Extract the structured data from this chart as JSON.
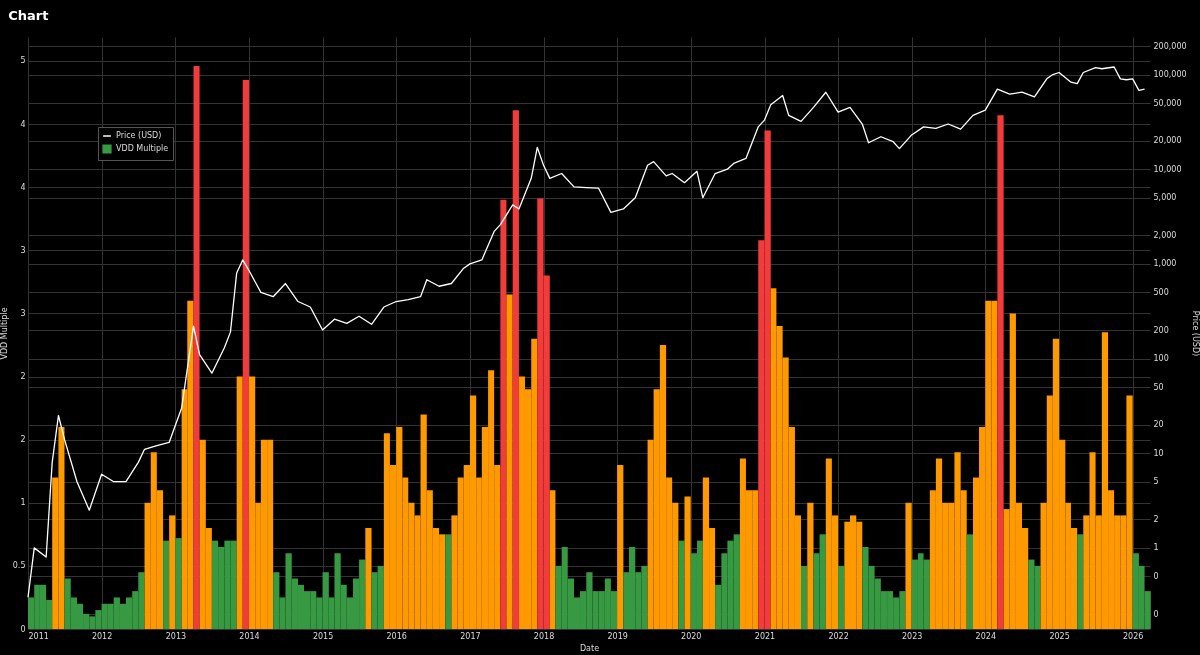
{
  "chart_data": {
    "type": "bar",
    "title": "Chart",
    "xlabel": "Date",
    "ylabel": "VDD Multiple",
    "y2label": "Price (USD)",
    "x": [
      "2011-01",
      "2011-02",
      "2011-03",
      "2011-04",
      "2011-05",
      "2011-06",
      "2011-07",
      "2011-08",
      "2011-09",
      "2011-10",
      "2011-11",
      "2011-12",
      "2012-01",
      "2012-02",
      "2012-03",
      "2012-04",
      "2012-05",
      "2012-06",
      "2012-07",
      "2012-08",
      "2012-09",
      "2012-10",
      "2012-11",
      "2012-12",
      "2013-01",
      "2013-02",
      "2013-03",
      "2013-04",
      "2013-05",
      "2013-06",
      "2013-07",
      "2013-08",
      "2013-09",
      "2013-10",
      "2013-11",
      "2013-12",
      "2014-01",
      "2014-02",
      "2014-03",
      "2014-04",
      "2014-05",
      "2014-06",
      "2014-07",
      "2014-08",
      "2014-09",
      "2014-10",
      "2014-11",
      "2014-12",
      "2015-01",
      "2015-02",
      "2015-03",
      "2015-04",
      "2015-05",
      "2015-06",
      "2015-07",
      "2015-08",
      "2015-09",
      "2015-10",
      "2015-11",
      "2015-12",
      "2016-01",
      "2016-02",
      "2016-03",
      "2016-04",
      "2016-05",
      "2016-06",
      "2016-07",
      "2016-08",
      "2016-09",
      "2016-10",
      "2016-11",
      "2016-12",
      "2017-01",
      "2017-02",
      "2017-03",
      "2017-04",
      "2017-05",
      "2017-06",
      "2017-07",
      "2017-08",
      "2017-09",
      "2017-10",
      "2017-11",
      "2017-12",
      "2018-01",
      "2018-02",
      "2018-03",
      "2018-04",
      "2018-05",
      "2018-06",
      "2018-07",
      "2018-08",
      "2018-09",
      "2018-10",
      "2018-11",
      "2018-12",
      "2019-01",
      "2019-02",
      "2019-03",
      "2019-04",
      "2019-05",
      "2019-06",
      "2019-07",
      "2019-08",
      "2019-09",
      "2019-10",
      "2019-11",
      "2019-12",
      "2020-01",
      "2020-02",
      "2020-03",
      "2020-04",
      "2020-05",
      "2020-06",
      "2020-07",
      "2020-08",
      "2020-09",
      "2020-10",
      "2020-11",
      "2020-12",
      "2021-01",
      "2021-02",
      "2021-03",
      "2021-04",
      "2021-05",
      "2021-06",
      "2021-07",
      "2021-08",
      "2021-09",
      "2021-10",
      "2021-11",
      "2021-12",
      "2022-01",
      "2022-02",
      "2022-03",
      "2022-04",
      "2022-05",
      "2022-06",
      "2022-07",
      "2022-08",
      "2022-09",
      "2022-10",
      "2022-11",
      "2022-12",
      "2023-01",
      "2023-02",
      "2023-03",
      "2023-04",
      "2023-05",
      "2023-06",
      "2023-07",
      "2023-08",
      "2023-09",
      "2023-10",
      "2023-11",
      "2023-12",
      "2024-01",
      "2024-02",
      "2024-03",
      "2024-04",
      "2024-05",
      "2024-06",
      "2024-07",
      "2024-08",
      "2024-09",
      "2024-10",
      "2024-11",
      "2024-12",
      "2025-01",
      "2025-02",
      "2025-03",
      "2025-04",
      "2025-05",
      "2025-06",
      "2025-07",
      "2025-08",
      "2025-09",
      "2025-10",
      "2025-11",
      "2025-12",
      "2026-01",
      "2026-02",
      "2026-03"
    ],
    "series": [
      {
        "name": "Price (USD)",
        "type": "line",
        "axis": "y2",
        "color": "#ffffff",
        "x": [
          "2011-01",
          "2011-02",
          "2011-04",
          "2011-05",
          "2011-06",
          "2011-07",
          "2011-09",
          "2011-11",
          "2012-01",
          "2012-03",
          "2012-05",
          "2012-07",
          "2012-08",
          "2012-10",
          "2012-12",
          "2013-02",
          "2013-04",
          "2013-05",
          "2013-07",
          "2013-09",
          "2013-10",
          "2013-11",
          "2013-12",
          "2014-01",
          "2014-03",
          "2014-05",
          "2014-07",
          "2014-09",
          "2014-11",
          "2015-01",
          "2015-03",
          "2015-05",
          "2015-07",
          "2015-09",
          "2015-11",
          "2016-01",
          "2016-03",
          "2016-05",
          "2016-06",
          "2016-08",
          "2016-10",
          "2016-12",
          "2017-01",
          "2017-03",
          "2017-05",
          "2017-06",
          "2017-08",
          "2017-09",
          "2017-11",
          "2017-12",
          "2018-01",
          "2018-02",
          "2018-04",
          "2018-06",
          "2018-08",
          "2018-10",
          "2018-12",
          "2019-02",
          "2019-04",
          "2019-06",
          "2019-07",
          "2019-09",
          "2019-10",
          "2019-12",
          "2020-02",
          "2020-03",
          "2020-05",
          "2020-07",
          "2020-08",
          "2020-10",
          "2020-12",
          "2021-01",
          "2021-02",
          "2021-04",
          "2021-05",
          "2021-07",
          "2021-09",
          "2021-11",
          "2022-01",
          "2022-03",
          "2022-05",
          "2022-06",
          "2022-08",
          "2022-10",
          "2022-11",
          "2023-01",
          "2023-03",
          "2023-05",
          "2023-07",
          "2023-09",
          "2023-11",
          "2024-01",
          "2024-03",
          "2024-05",
          "2024-07",
          "2024-09",
          "2024-11",
          "2024-12",
          "2025-01",
          "2025-03",
          "2025-04",
          "2025-05",
          "2025-07",
          "2025-08",
          "2025-10",
          "2025-11",
          "2025-12",
          "2026-01",
          "2026-02",
          "2026-03"
        ],
        "values": [
          0.3,
          1,
          0.8,
          8,
          25,
          14,
          5,
          2.5,
          6,
          5,
          5,
          8,
          11,
          12,
          13,
          30,
          220,
          110,
          70,
          130,
          190,
          800,
          1100,
          850,
          500,
          450,
          620,
          400,
          350,
          200,
          260,
          235,
          280,
          230,
          350,
          400,
          420,
          450,
          680,
          580,
          620,
          900,
          1000,
          1100,
          2200,
          2600,
          4200,
          3800,
          8000,
          17000,
          11000,
          8000,
          9000,
          6500,
          6400,
          6300,
          3500,
          3800,
          5000,
          11000,
          12000,
          8500,
          9000,
          7200,
          9500,
          5000,
          9000,
          10000,
          11500,
          13000,
          28000,
          33000,
          48000,
          60000,
          37000,
          32000,
          45000,
          65000,
          40000,
          45000,
          30000,
          19000,
          22000,
          19500,
          16500,
          23000,
          28000,
          27000,
          30000,
          26500,
          37000,
          42000,
          70000,
          62000,
          65000,
          58000,
          90000,
          100000,
          105000,
          83000,
          80000,
          105000,
          118000,
          115000,
          120000,
          90000,
          88000,
          90000,
          68000,
          70000
        ]
      },
      {
        "name": "VDD Multiple",
        "color": "#379a43",
        "values": [
          0.25,
          0.35,
          0.35,
          0.23,
          1.2,
          1.6,
          0.4,
          0.25,
          0.2,
          0.12,
          0.1,
          0.15,
          0.2,
          0.2,
          0.25,
          0.2,
          0.25,
          0.3,
          0.45,
          1.0,
          1.4,
          1.1,
          0.7,
          0.9,
          0.72,
          1.9,
          2.6,
          4.46,
          1.5,
          0.8,
          0.7,
          0.65,
          0.7,
          0.7,
          2.0,
          4.35,
          2.0,
          1.0,
          1.5,
          1.5,
          0.45,
          0.25,
          0.6,
          0.4,
          0.35,
          0.3,
          0.3,
          0.25,
          0.45,
          0.25,
          0.6,
          0.35,
          0.25,
          0.4,
          0.55,
          0.8,
          0.45,
          0.5,
          1.55,
          1.3,
          1.6,
          1.2,
          1.0,
          0.9,
          1.7,
          1.1,
          0.8,
          0.75,
          0.75,
          0.9,
          1.2,
          1.3,
          1.85,
          1.2,
          1.6,
          2.05,
          1.3,
          3.4,
          2.65,
          4.11,
          2.0,
          1.9,
          2.3,
          3.41,
          2.8,
          1.1,
          0.5,
          0.65,
          0.4,
          0.25,
          0.3,
          0.45,
          0.3,
          0.3,
          0.4,
          0.3,
          1.3,
          0.45,
          0.65,
          0.45,
          0.5,
          1.5,
          1.9,
          2.25,
          1.2,
          1.0,
          0.7,
          1.05,
          0.6,
          0.7,
          1.2,
          0.8,
          0.35,
          0.6,
          0.7,
          0.75,
          1.35,
          1.1,
          1.1,
          3.08,
          3.95,
          2.7,
          2.4,
          2.15,
          1.6,
          0.9,
          0.5,
          1.0,
          0.6,
          0.75,
          1.35,
          0.9,
          0.5,
          0.85,
          0.9,
          0.85,
          0.65,
          0.5,
          0.4,
          0.3,
          0.3,
          0.25,
          0.3,
          1.0,
          0.55,
          0.6,
          0.55,
          1.1,
          1.35,
          1.0,
          1.0,
          1.4,
          1.1,
          0.75,
          1.2,
          1.6,
          2.6,
          2.6,
          4.07,
          0.95,
          2.5,
          1.0,
          0.8,
          0.55,
          0.5,
          1.0,
          1.85,
          2.3,
          1.5,
          1.0,
          0.8,
          0.75,
          0.9,
          1.4,
          0.9,
          2.35,
          1.1,
          0.9,
          0.9,
          1.85,
          0.6,
          0.5,
          0.3
        ],
        "colors": [
          "#379a43",
          "#379a43",
          "#379a43",
          "#379a43",
          "#ff9900",
          "#ff9900",
          "#379a43",
          "#379a43",
          "#379a43",
          "#379a43",
          "#379a43",
          "#379a43",
          "#379a43",
          "#379a43",
          "#379a43",
          "#379a43",
          "#379a43",
          "#379a43",
          "#379a43",
          "#ff9900",
          "#ff9900",
          "#ff9900",
          "#379a43",
          "#ff9900",
          "#379a43",
          "#ff9900",
          "#ff9900",
          "#f23b3b",
          "#ff9900",
          "#ff9900",
          "#379a43",
          "#379a43",
          "#379a43",
          "#379a43",
          "#ff9900",
          "#f23b3b",
          "#ff9900",
          "#ff9900",
          "#ff9900",
          "#ff9900",
          "#379a43",
          "#379a43",
          "#379a43",
          "#379a43",
          "#379a43",
          "#379a43",
          "#379a43",
          "#379a43",
          "#379a43",
          "#379a43",
          "#379a43",
          "#379a43",
          "#379a43",
          "#379a43",
          "#379a43",
          "#ff9900",
          "#379a43",
          "#379a43",
          "#ff9900",
          "#ff9900",
          "#ff9900",
          "#ff9900",
          "#ff9900",
          "#ff9900",
          "#ff9900",
          "#ff9900",
          "#ff9900",
          "#ff9900",
          "#379a43",
          "#ff9900",
          "#ff9900",
          "#ff9900",
          "#ff9900",
          "#ff9900",
          "#ff9900",
          "#ff9900",
          "#ff9900",
          "#f23b3b",
          "#ff9900",
          "#f23b3b",
          "#ff9900",
          "#ff9900",
          "#ff9900",
          "#f23b3b",
          "#f23b3b",
          "#ff9900",
          "#379a43",
          "#379a43",
          "#379a43",
          "#379a43",
          "#379a43",
          "#379a43",
          "#379a43",
          "#379a43",
          "#379a43",
          "#379a43",
          "#ff9900",
          "#379a43",
          "#379a43",
          "#379a43",
          "#379a43",
          "#ff9900",
          "#ff9900",
          "#ff9900",
          "#ff9900",
          "#ff9900",
          "#379a43",
          "#ff9900",
          "#379a43",
          "#379a43",
          "#ff9900",
          "#ff9900",
          "#379a43",
          "#379a43",
          "#379a43",
          "#379a43",
          "#ff9900",
          "#ff9900",
          "#ff9900",
          "#f23b3b",
          "#f23b3b",
          "#ff9900",
          "#ff9900",
          "#ff9900",
          "#ff9900",
          "#ff9900",
          "#379a43",
          "#ff9900",
          "#379a43",
          "#379a43",
          "#ff9900",
          "#ff9900",
          "#379a43",
          "#ff9900",
          "#ff9900",
          "#ff9900",
          "#379a43",
          "#379a43",
          "#379a43",
          "#379a43",
          "#379a43",
          "#379a43",
          "#379a43",
          "#ff9900",
          "#379a43",
          "#379a43",
          "#379a43",
          "#ff9900",
          "#ff9900",
          "#ff9900",
          "#ff9900",
          "#ff9900",
          "#ff9900",
          "#379a43",
          "#ff9900",
          "#ff9900",
          "#ff9900",
          "#ff9900",
          "#f23b3b",
          "#ff9900",
          "#ff9900",
          "#ff9900",
          "#ff9900",
          "#379a43",
          "#379a43",
          "#ff9900",
          "#ff9900",
          "#ff9900",
          "#ff9900",
          "#ff9900",
          "#ff9900",
          "#379a43",
          "#ff9900",
          "#ff9900",
          "#ff9900",
          "#ff9900",
          "#ff9900",
          "#ff9900",
          "#ff9900",
          "#ff9900",
          "#379a43",
          "#379a43",
          "#379a43"
        ]
      }
    ],
    "xlim": [
      "2011-01-01",
      "2026-03-28"
    ],
    "xticks": [
      "2011",
      "2012",
      "2013",
      "2014",
      "2015",
      "2016",
      "2017",
      "2018",
      "2019",
      "2020",
      "2021",
      "2022",
      "2023",
      "2024",
      "2025",
      "2026"
    ],
    "ylim": [
      0,
      4.69
    ],
    "yticks": [
      0,
      0.5,
      1,
      {
        "value": 1.5,
        "label": "2"
      },
      2,
      {
        "value": 2.5,
        "label": "3"
      },
      3,
      {
        "value": 3.5,
        "label": "4"
      },
      4,
      {
        "value": 4.5,
        "label": "5"
      }
    ],
    "y2lim": [
      0.139,
      249000
    ],
    "y2ticks": [
      {
        "value": 0.2,
        "label": "0"
      },
      {
        "value": 0.5,
        "label": "0"
      },
      1,
      2,
      5,
      10,
      20,
      50,
      100,
      200,
      500,
      {
        "value": 1000,
        "label": "1,000"
      },
      {
        "value": 2000,
        "label": "2,000"
      },
      {
        "value": 5000,
        "label": "5,000"
      },
      {
        "value": 10000,
        "label": "10,000"
      },
      {
        "value": 20000,
        "label": "20,000"
      },
      {
        "value": 50000,
        "label": "50,000"
      },
      {
        "value": 100000,
        "label": "100,000"
      },
      {
        "value": 200000,
        "label": "200,000"
      }
    ],
    "log": "y2",
    "grid": true,
    "legend": "top left"
  }
}
